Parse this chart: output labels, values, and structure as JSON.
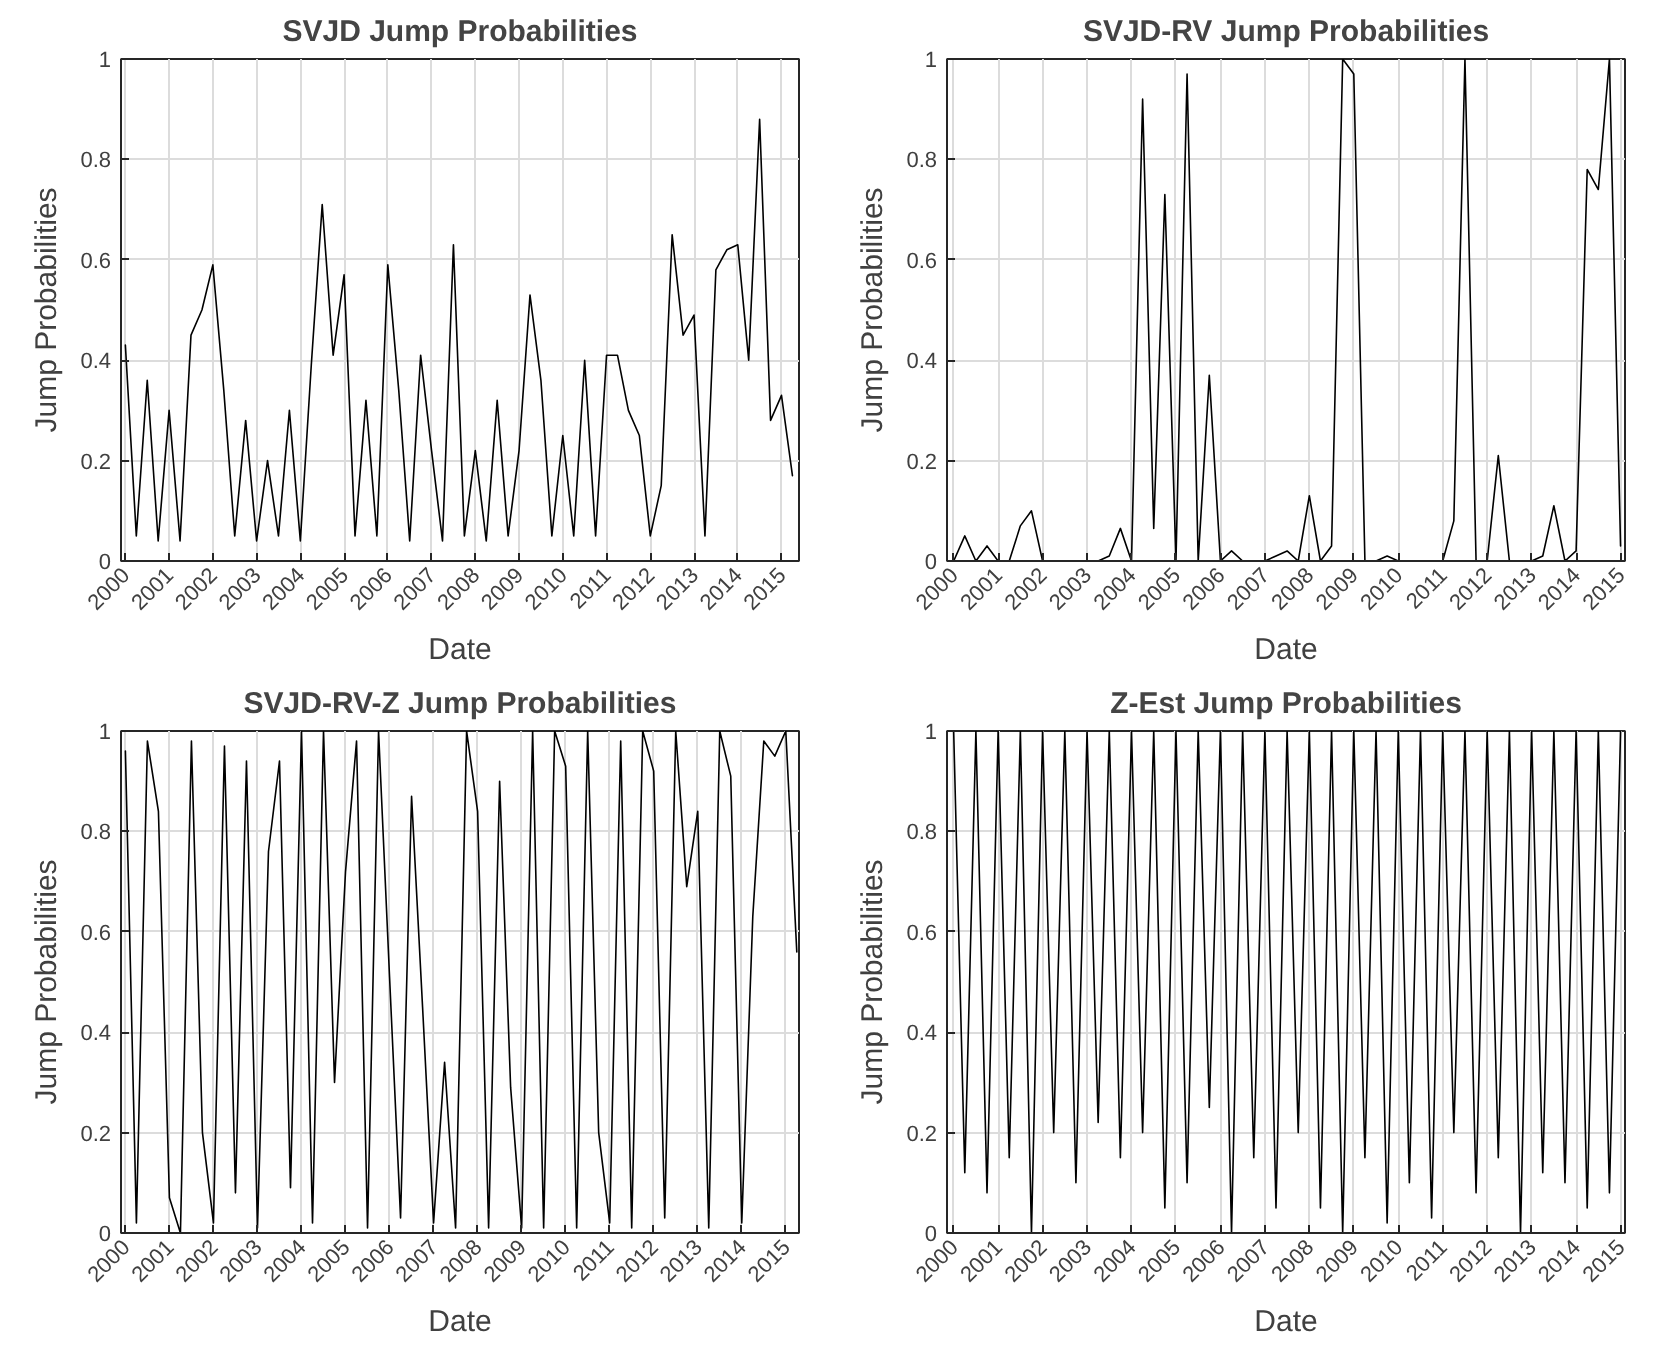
{
  "chart_data": [
    {
      "type": "line",
      "title": "SVJD Jump Probabilities",
      "xlabel": "Date",
      "ylabel": "Jump Probabilities",
      "grid": true,
      "x": [
        2000.0,
        2000.25,
        2000.5,
        2000.75,
        2001.0,
        2001.25,
        2001.5,
        2001.75,
        2002.0,
        2002.25,
        2002.5,
        2002.75,
        2003.0,
        2003.25,
        2003.5,
        2003.75,
        2004.0,
        2004.25,
        2004.5,
        2004.75,
        2005.0,
        2005.25,
        2005.5,
        2005.75,
        2006.0,
        2006.25,
        2006.5,
        2006.75,
        2007.0,
        2007.25,
        2007.5,
        2007.75,
        2008.0,
        2008.25,
        2008.5,
        2008.75,
        2009.0,
        2009.25,
        2009.5,
        2009.75,
        2010.0,
        2010.25,
        2010.5,
        2010.75,
        2011.0,
        2011.25,
        2011.5,
        2011.75,
        2012.0,
        2012.25,
        2012.5,
        2012.75,
        2013.0,
        2013.25,
        2013.5,
        2013.75,
        2014.0,
        2014.25,
        2014.5,
        2014.75,
        2015.0,
        2015.25
      ],
      "series": [
        {
          "color": "#000000",
          "values": [
            0.43,
            0.05,
            0.36,
            0.04,
            0.3,
            0.04,
            0.45,
            0.5,
            0.59,
            0.34,
            0.05,
            0.28,
            0.04,
            0.2,
            0.05,
            0.3,
            0.04,
            0.39,
            0.71,
            0.41,
            0.57,
            0.05,
            0.32,
            0.05,
            0.59,
            0.34,
            0.04,
            0.41,
            0.22,
            0.04,
            0.63,
            0.05,
            0.22,
            0.04,
            0.32,
            0.05,
            0.22,
            0.53,
            0.36,
            0.05,
            0.25,
            0.05,
            0.4,
            0.05,
            0.41,
            0.41,
            0.3,
            0.25,
            0.05,
            0.15,
            0.65,
            0.45,
            0.49,
            0.05,
            0.58,
            0.62,
            0.63,
            0.4,
            0.88,
            0.28,
            0.33,
            0.17
          ]
        }
      ],
      "xlim": [
        1999.9,
        2015.4
      ],
      "ylim": [
        0,
        1
      ],
      "xticks": [
        2000,
        2001,
        2002,
        2003,
        2004,
        2005,
        2006,
        2007,
        2008,
        2009,
        2010,
        2011,
        2012,
        2013,
        2014,
        2015
      ],
      "yticks": [
        0,
        0.2,
        0.4,
        0.6,
        0.8,
        1
      ]
    },
    {
      "type": "line",
      "title": "SVJD-RV Jump Probabilities",
      "xlabel": "Date",
      "ylabel": "Jump Probabilities",
      "grid": true,
      "x": [
        2000.0,
        2000.25,
        2000.5,
        2000.75,
        2001.0,
        2001.25,
        2001.5,
        2001.75,
        2002.0,
        2002.25,
        2002.5,
        2002.75,
        2003.0,
        2003.25,
        2003.5,
        2003.75,
        2004.0,
        2004.25,
        2004.5,
        2004.75,
        2005.0,
        2005.25,
        2005.5,
        2005.75,
        2006.0,
        2006.25,
        2006.5,
        2006.75,
        2007.0,
        2007.25,
        2007.5,
        2007.75,
        2008.0,
        2008.25,
        2008.5,
        2008.75,
        2009.0,
        2009.25,
        2009.5,
        2009.75,
        2010.0,
        2010.25,
        2010.5,
        2010.75,
        2011.0,
        2011.25,
        2011.5,
        2011.75,
        2012.0,
        2012.25,
        2012.5,
        2012.75,
        2013.0,
        2013.25,
        2013.5,
        2013.75,
        2014.0,
        2014.25,
        2014.5,
        2014.75,
        2015.0
      ],
      "series": [
        {
          "color": "#000000",
          "values": [
            0,
            0.05,
            0,
            0.03,
            0,
            0,
            0.07,
            0.1,
            0,
            0,
            0,
            0,
            0,
            0,
            0.01,
            0.065,
            0,
            0.92,
            0.065,
            0.73,
            0,
            0.97,
            0,
            0.37,
            0,
            0.02,
            0,
            0,
            0,
            0.01,
            0.02,
            0,
            0.13,
            0,
            0.03,
            1.0,
            0.97,
            0,
            0,
            0.01,
            0,
            0,
            0,
            0,
            0,
            0.08,
            1.0,
            0,
            0,
            0.21,
            0,
            0,
            0,
            0.01,
            0.11,
            0,
            0.02,
            0.78,
            0.74,
            1.0,
            0.03
          ]
        }
      ],
      "xlim": [
        1999.85,
        2015.1
      ],
      "ylim": [
        0,
        1
      ],
      "xticks": [
        2000,
        2001,
        2002,
        2003,
        2004,
        2005,
        2006,
        2007,
        2008,
        2009,
        2010,
        2011,
        2012,
        2013,
        2014,
        2015
      ],
      "yticks": [
        0,
        0.2,
        0.4,
        0.6,
        0.8,
        1
      ]
    },
    {
      "type": "line",
      "title": "SVJD-RV-Z Jump Probabilities",
      "xlabel": "Date",
      "ylabel": "Jump Probabilities",
      "grid": true,
      "x": [
        2000.0,
        2000.25,
        2000.5,
        2000.75,
        2001.0,
        2001.25,
        2001.5,
        2001.75,
        2002.0,
        2002.25,
        2002.5,
        2002.75,
        2003.0,
        2003.25,
        2003.5,
        2003.75,
        2004.0,
        2004.25,
        2004.5,
        2004.75,
        2005.0,
        2005.25,
        2005.5,
        2005.75,
        2006.0,
        2006.25,
        2006.5,
        2006.75,
        2007.0,
        2007.25,
        2007.5,
        2007.75,
        2008.0,
        2008.25,
        2008.5,
        2008.75,
        2009.0,
        2009.25,
        2009.5,
        2009.75,
        2010.0,
        2010.25,
        2010.5,
        2010.75,
        2011.0,
        2011.25,
        2011.5,
        2011.75,
        2012.0,
        2012.25,
        2012.5,
        2012.75,
        2013.0,
        2013.25,
        2013.5,
        2013.75,
        2014.0,
        2014.25,
        2014.5,
        2014.75,
        2015.0,
        2015.25
      ],
      "series": [
        {
          "color": "#000000",
          "values": [
            0.96,
            0.02,
            0.98,
            0.84,
            0.07,
            0.0,
            0.98,
            0.2,
            0.02,
            0.97,
            0.08,
            0.94,
            0.01,
            0.76,
            0.94,
            0.09,
            1.0,
            0.02,
            1.0,
            0.3,
            0.72,
            0.98,
            0.01,
            1.0,
            0.51,
            0.03,
            0.87,
            0.45,
            0.02,
            0.34,
            0.01,
            1.0,
            0.84,
            0.01,
            0.9,
            0.29,
            0.01,
            1.0,
            0.01,
            1.0,
            0.93,
            0.01,
            1.0,
            0.2,
            0.02,
            0.98,
            0.01,
            1.0,
            0.92,
            0.03,
            1.0,
            0.69,
            0.84,
            0.01,
            1.0,
            0.91,
            0.02,
            0.63,
            0.98,
            0.95,
            1.0,
            0.56
          ]
        }
      ],
      "xlim": [
        1999.9,
        2015.3
      ],
      "ylim": [
        0,
        1
      ],
      "xticks": [
        2000,
        2001,
        2002,
        2003,
        2004,
        2005,
        2006,
        2007,
        2008,
        2009,
        2010,
        2011,
        2012,
        2013,
        2014,
        2015
      ],
      "yticks": [
        0,
        0.2,
        0.4,
        0.6,
        0.8,
        1
      ]
    },
    {
      "type": "line",
      "title": "Z-Est Jump Probabilities",
      "xlabel": "Date",
      "ylabel": "Jump Probabilities",
      "grid": true,
      "x": [
        2000.0,
        2000.25,
        2000.5,
        2000.75,
        2001.0,
        2001.25,
        2001.5,
        2001.75,
        2002.0,
        2002.25,
        2002.5,
        2002.75,
        2003.0,
        2003.25,
        2003.5,
        2003.75,
        2004.0,
        2004.25,
        2004.5,
        2004.75,
        2005.0,
        2005.25,
        2005.5,
        2005.75,
        2006.0,
        2006.25,
        2006.5,
        2006.75,
        2007.0,
        2007.25,
        2007.5,
        2007.75,
        2008.0,
        2008.25,
        2008.5,
        2008.75,
        2009.0,
        2009.25,
        2009.5,
        2009.75,
        2010.0,
        2010.25,
        2010.5,
        2010.75,
        2011.0,
        2011.25,
        2011.5,
        2011.75,
        2012.0,
        2012.25,
        2012.5,
        2012.75,
        2013.0,
        2013.25,
        2013.5,
        2013.75,
        2014.0,
        2014.25,
        2014.5,
        2014.75,
        2015.0
      ],
      "series": [
        {
          "color": "#000000",
          "values": [
            1.0,
            0.12,
            1.0,
            0.08,
            1.0,
            0.15,
            1.0,
            0.0,
            1.0,
            0.2,
            1.0,
            0.1,
            1.0,
            0.22,
            1.0,
            0.15,
            1.0,
            0.2,
            1.0,
            0.05,
            1.0,
            0.1,
            1.0,
            0.25,
            1.0,
            0.0,
            1.0,
            0.15,
            1.0,
            0.05,
            1.0,
            0.2,
            1.0,
            0.05,
            1.0,
            0.0,
            1.0,
            0.15,
            1.0,
            0.02,
            1.0,
            0.1,
            1.0,
            0.03,
            1.0,
            0.2,
            1.0,
            0.08,
            1.0,
            0.15,
            1.0,
            0.0,
            1.0,
            0.12,
            1.0,
            0.1,
            1.0,
            0.05,
            1.0,
            0.08,
            1.0
          ]
        }
      ],
      "xlim": [
        1999.85,
        2015.1
      ],
      "ylim": [
        0,
        1
      ],
      "xticks": [
        2000,
        2001,
        2002,
        2003,
        2004,
        2005,
        2006,
        2007,
        2008,
        2009,
        2010,
        2011,
        2012,
        2013,
        2014,
        2015
      ],
      "yticks": [
        0,
        0.2,
        0.4,
        0.6,
        0.8,
        1
      ]
    }
  ]
}
